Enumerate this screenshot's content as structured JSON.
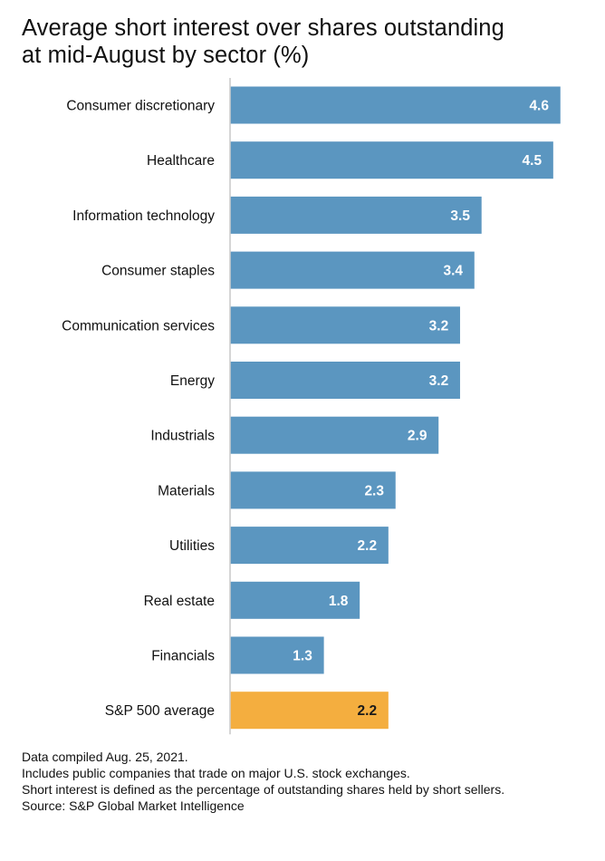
{
  "title": {
    "line1": "Average short interest over shares outstanding",
    "line2": "at mid-August by sector (%)"
  },
  "colors": {
    "bar": "#5b96c0",
    "highlight": "#f4ae3f",
    "axis": "#c8c8c8",
    "value_text": "#ffffff",
    "label_text": "#111111"
  },
  "chart_data": {
    "type": "bar",
    "orientation": "horizontal",
    "title": "Average short interest over shares outstanding at mid-August by sector (%)",
    "categories": [
      "Consumer discretionary",
      "Healthcare",
      "Information technology",
      "Consumer staples",
      "Communication services",
      "Energy",
      "Industrials",
      "Materials",
      "Utilities",
      "Real estate",
      "Financials",
      "S&P 500 average"
    ],
    "values": [
      4.6,
      4.5,
      3.5,
      3.4,
      3.2,
      3.2,
      2.9,
      2.3,
      2.2,
      1.8,
      1.3,
      2.2
    ],
    "value_labels": [
      "4.6",
      "4.5",
      "3.5",
      "3.4",
      "3.2",
      "3.2",
      "2.9",
      "2.3",
      "2.2",
      "1.8",
      "1.3",
      "2.2"
    ],
    "highlighted_category": "S&P 500 average",
    "xlim": [
      0,
      4.6
    ],
    "grid": false,
    "legend": "none",
    "data_labels": "inside-end"
  },
  "notes": [
    "Data compiled Aug. 25, 2021.",
    "Includes public companies that trade on major U.S. stock exchanges.",
    "Short interest is defined as the percentage of outstanding shares held by short sellers.",
    "Source: S&P Global Market Intelligence"
  ]
}
